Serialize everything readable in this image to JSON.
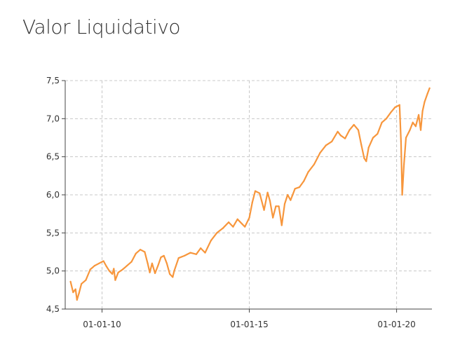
{
  "title": "Valor Liquidativo",
  "colors": {
    "line": "#f7963c",
    "grid": "#c8c8c8",
    "axis": "#444444"
  },
  "chart_data": {
    "type": "line",
    "title": "Valor Liquidativo",
    "xlabel": "",
    "ylabel": "",
    "x_ticks": [
      {
        "label": "01-01-10",
        "year": 2010.0
      },
      {
        "label": "01-01-15",
        "year": 2015.0
      },
      {
        "label": "01-01-20",
        "year": 2020.0
      }
    ],
    "y_ticks": [
      "4,5",
      "5,0",
      "5,5",
      "6,0",
      "6,5",
      "7,0",
      "7,5"
    ],
    "y_tick_values": [
      4.5,
      5.0,
      5.5,
      6.0,
      6.5,
      7.0,
      7.5
    ],
    "ylim": [
      4.5,
      7.5
    ],
    "xlim_year": [
      2008.75,
      2021.2
    ],
    "grid": true,
    "legend": "none",
    "series": [
      {
        "points": [
          [
            2008.93,
            4.86
          ],
          [
            2009.02,
            4.72
          ],
          [
            2009.1,
            4.76
          ],
          [
            2009.15,
            4.62
          ],
          [
            2009.22,
            4.71
          ],
          [
            2009.3,
            4.83
          ],
          [
            2009.45,
            4.88
          ],
          [
            2009.6,
            5.02
          ],
          [
            2009.75,
            5.07
          ],
          [
            2009.9,
            5.1
          ],
          [
            2010.05,
            5.13
          ],
          [
            2010.15,
            5.06
          ],
          [
            2010.25,
            5.0
          ],
          [
            2010.35,
            4.96
          ],
          [
            2010.4,
            5.03
          ],
          [
            2010.45,
            4.88
          ],
          [
            2010.55,
            4.98
          ],
          [
            2010.7,
            5.02
          ],
          [
            2010.85,
            5.07
          ],
          [
            2011.0,
            5.12
          ],
          [
            2011.15,
            5.23
          ],
          [
            2011.3,
            5.28
          ],
          [
            2011.45,
            5.25
          ],
          [
            2011.55,
            5.1
          ],
          [
            2011.62,
            4.98
          ],
          [
            2011.7,
            5.1
          ],
          [
            2011.8,
            4.97
          ],
          [
            2011.9,
            5.07
          ],
          [
            2012.0,
            5.18
          ],
          [
            2012.1,
            5.2
          ],
          [
            2012.2,
            5.1
          ],
          [
            2012.3,
            4.96
          ],
          [
            2012.4,
            4.92
          ],
          [
            2012.45,
            5.0
          ],
          [
            2012.6,
            5.17
          ],
          [
            2012.8,
            5.2
          ],
          [
            2013.0,
            5.24
          ],
          [
            2013.2,
            5.22
          ],
          [
            2013.35,
            5.3
          ],
          [
            2013.5,
            5.24
          ],
          [
            2013.7,
            5.4
          ],
          [
            2013.9,
            5.5
          ],
          [
            2014.1,
            5.56
          ],
          [
            2014.3,
            5.64
          ],
          [
            2014.45,
            5.58
          ],
          [
            2014.6,
            5.68
          ],
          [
            2014.75,
            5.62
          ],
          [
            2014.85,
            5.58
          ],
          [
            2015.0,
            5.7
          ],
          [
            2015.1,
            5.9
          ],
          [
            2015.2,
            6.05
          ],
          [
            2015.35,
            6.02
          ],
          [
            2015.5,
            5.8
          ],
          [
            2015.62,
            6.03
          ],
          [
            2015.7,
            5.92
          ],
          [
            2015.8,
            5.7
          ],
          [
            2015.9,
            5.85
          ],
          [
            2016.0,
            5.85
          ],
          [
            2016.1,
            5.6
          ],
          [
            2016.2,
            5.88
          ],
          [
            2016.3,
            6.0
          ],
          [
            2016.4,
            5.93
          ],
          [
            2016.55,
            6.08
          ],
          [
            2016.7,
            6.1
          ],
          [
            2016.85,
            6.18
          ],
          [
            2017.0,
            6.3
          ],
          [
            2017.2,
            6.4
          ],
          [
            2017.4,
            6.55
          ],
          [
            2017.6,
            6.65
          ],
          [
            2017.8,
            6.7
          ],
          [
            2018.0,
            6.83
          ],
          [
            2018.1,
            6.78
          ],
          [
            2018.25,
            6.74
          ],
          [
            2018.4,
            6.85
          ],
          [
            2018.55,
            6.92
          ],
          [
            2018.7,
            6.85
          ],
          [
            2018.8,
            6.66
          ],
          [
            2018.9,
            6.48
          ],
          [
            2018.97,
            6.44
          ],
          [
            2019.05,
            6.62
          ],
          [
            2019.2,
            6.75
          ],
          [
            2019.35,
            6.8
          ],
          [
            2019.5,
            6.95
          ],
          [
            2019.65,
            7.0
          ],
          [
            2019.8,
            7.08
          ],
          [
            2019.95,
            7.15
          ],
          [
            2020.1,
            7.18
          ],
          [
            2020.15,
            6.7
          ],
          [
            2020.19,
            6.0
          ],
          [
            2020.25,
            6.4
          ],
          [
            2020.32,
            6.75
          ],
          [
            2020.45,
            6.85
          ],
          [
            2020.55,
            6.95
          ],
          [
            2020.65,
            6.9
          ],
          [
            2020.75,
            7.05
          ],
          [
            2020.82,
            6.85
          ],
          [
            2020.88,
            7.1
          ],
          [
            2020.95,
            7.22
          ],
          [
            2021.05,
            7.33
          ],
          [
            2021.12,
            7.4
          ]
        ]
      }
    ]
  }
}
